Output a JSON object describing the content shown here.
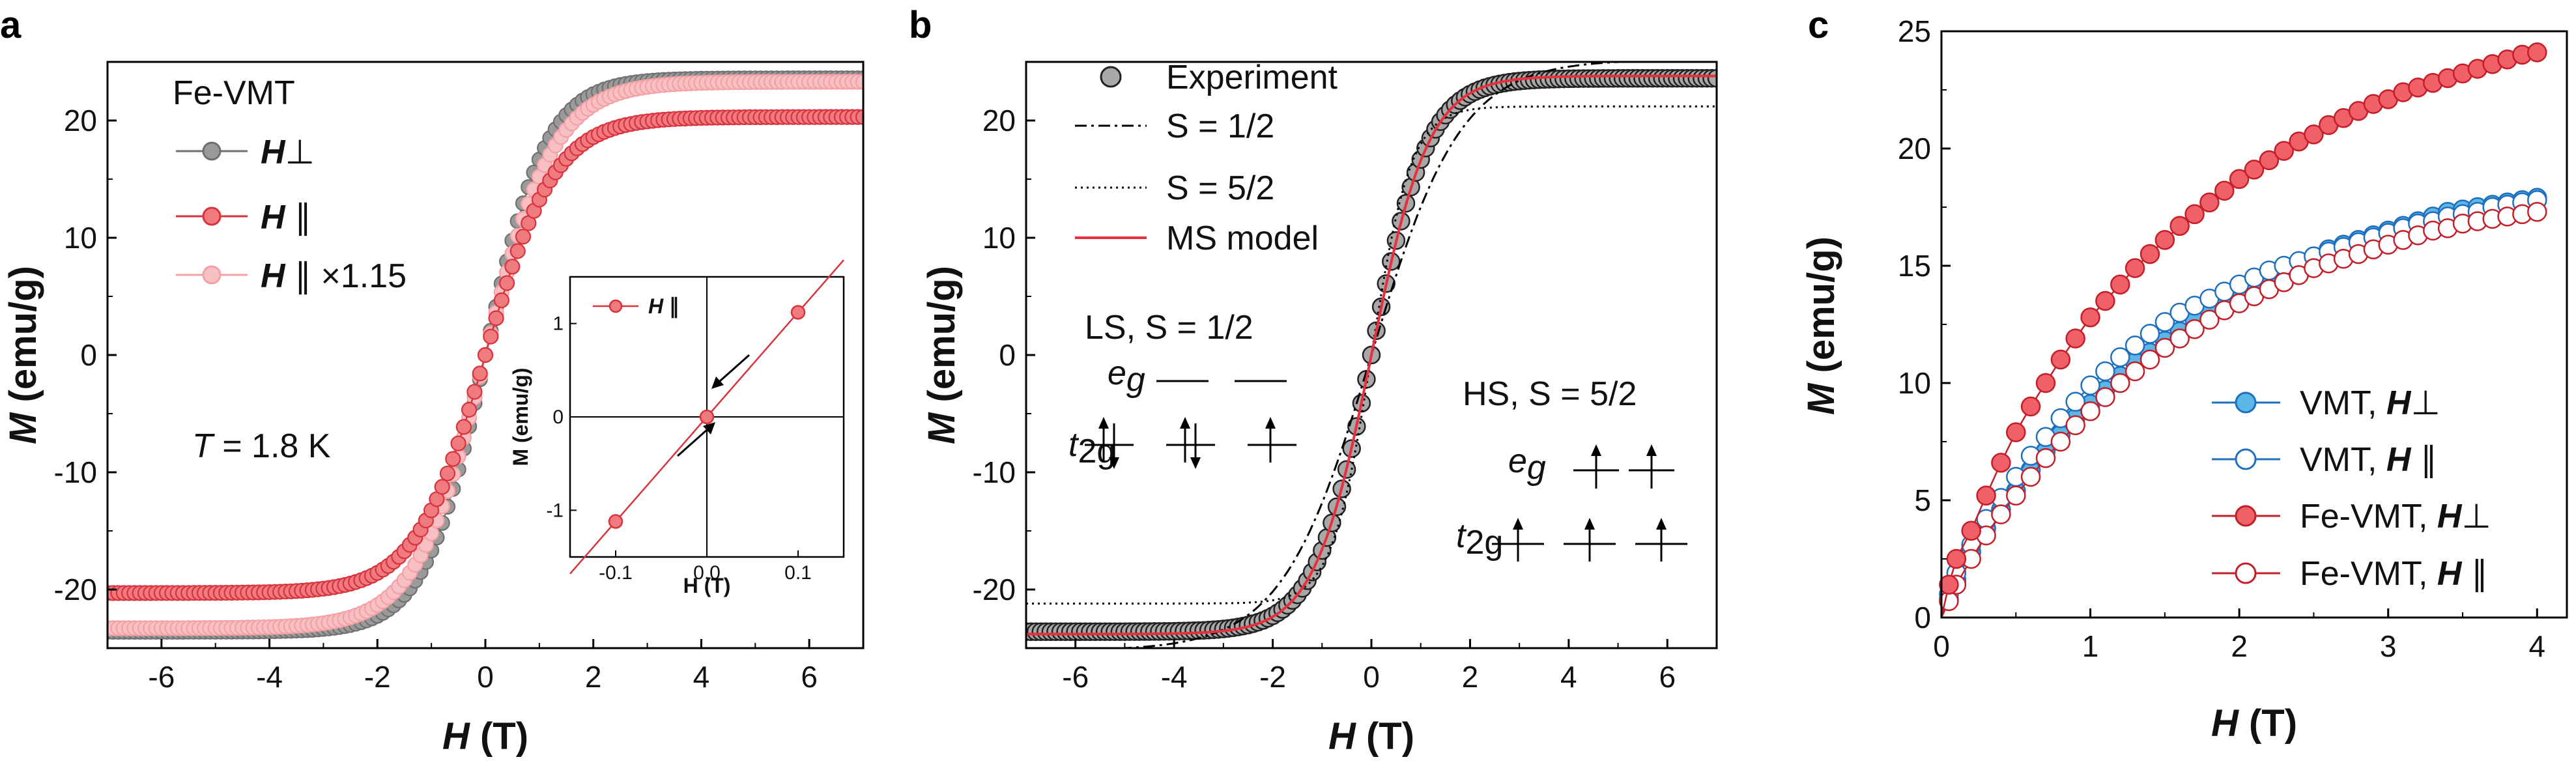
{
  "panels": {
    "a": {
      "letter": "a",
      "legend_title": "Fe-VMT",
      "legend": [
        {
          "sym": "H",
          "suffix": "⊥"
        },
        {
          "sym": "H",
          "suffix": " ∥"
        },
        {
          "sym": "H",
          "suffix": " ∥ ×1.15"
        }
      ],
      "temperature_var": "T",
      "temperature_text": " = 1.8 K",
      "xlabel_var": "H",
      "xlabel_unit": " (T)",
      "ylabel_var": "M",
      "ylabel_unit": " (emu/g)",
      "inset": {
        "legend": {
          "sym": "H",
          "suffix": " ∥"
        },
        "xlabel": "H (T)",
        "ylabel": "M (emu/g)"
      }
    },
    "b": {
      "letter": "b",
      "legend": [
        "Experiment",
        "S = 1/2",
        "S = 5/2",
        "MS model"
      ],
      "ls_label": "LS, S = 1/2",
      "hs_label": "HS, S = 5/2",
      "eg_main": "e",
      "eg_sub": "g",
      "t2g_main": "t",
      "t2g_sub": "2g",
      "xlabel_var": "H",
      "xlabel_unit": " (T)",
      "ylabel_var": "M",
      "ylabel_unit": " (emu/g)"
    },
    "c": {
      "letter": "c",
      "legend": [
        {
          "name": "VMT, ",
          "sym": "H",
          "suffix": "⊥"
        },
        {
          "name": "VMT, ",
          "sym": "H",
          "suffix": " ∥"
        },
        {
          "name": "Fe-VMT, ",
          "sym": "H",
          "suffix": "⊥"
        },
        {
          "name": "Fe-VMT, ",
          "sym": "H",
          "suffix": " ∥"
        }
      ],
      "xlabel_var": "H",
      "xlabel_unit": " (T)",
      "ylabel_var": "M",
      "ylabel_unit": " (emu/g)"
    }
  },
  "chart_data": [
    {
      "panel": "a",
      "type": "line",
      "title": "",
      "xlabel": "H (T)",
      "ylabel": "M (emu/g)",
      "xlim": [
        -7,
        7
      ],
      "ylim": [
        -25,
        25
      ],
      "xticks": [
        -6,
        -4,
        -2,
        0,
        2,
        4,
        6
      ],
      "yticks": [
        -20,
        -10,
        0,
        10,
        20
      ],
      "series": [
        {
          "name": "H⊥",
          "color": "#707070",
          "fill": "#9a9a9a",
          "sat": 23.6,
          "k": 0.88
        },
        {
          "name": "H ∥",
          "color": "#d8323c",
          "fill": "#ef7b7f",
          "sat": 20.3,
          "k": 0.78
        },
        {
          "name": "H ∥ ×1.15",
          "color": "#f4a0a4",
          "fill": "#f7c1c3",
          "sat": 23.3,
          "k": 0.78
        }
      ],
      "inset": {
        "xlim": [
          -0.15,
          0.15
        ],
        "ylim": [
          -1.5,
          1.5
        ],
        "xticks": [
          -0.1,
          0.0,
          0.1
        ],
        "yticks": [
          -1,
          0,
          1
        ],
        "points": [
          [
            -0.1,
            -1.12
          ],
          [
            0.0,
            0.0
          ],
          [
            0.1,
            1.12
          ]
        ]
      }
    },
    {
      "panel": "b",
      "type": "line",
      "title": "",
      "xlabel": "H (T)",
      "ylabel": "M (emu/g)",
      "xlim": [
        -7,
        7
      ],
      "ylim": [
        -25,
        25
      ],
      "xticks": [
        -6,
        -4,
        -2,
        0,
        2,
        4,
        6
      ],
      "yticks": [
        -20,
        -10,
        0,
        10,
        20
      ],
      "series": [
        {
          "name": "Experiment",
          "style": "markers",
          "sat": 23.6,
          "k": 0.88
        },
        {
          "name": "S = 1/2",
          "style": "dashdot",
          "sat": 25.2,
          "k": 0.55
        },
        {
          "name": "S = 5/2",
          "style": "dotted",
          "sat": 21.2,
          "k": 1.25
        },
        {
          "name": "MS model",
          "style": "solid",
          "color": "#e8303c",
          "sat": 23.8,
          "k": 0.86
        }
      ]
    },
    {
      "panel": "c",
      "type": "line",
      "title": "",
      "xlabel": "H (T)",
      "ylabel": "M (emu/g)",
      "xlim": [
        0,
        4.2
      ],
      "ylim": [
        0,
        25
      ],
      "xticks": [
        0,
        1,
        2,
        3,
        4
      ],
      "yticks": [
        0,
        5,
        10,
        15,
        20,
        25
      ],
      "series": [
        {
          "name": "VMT, H⊥",
          "color": "#1e6fbf",
          "fill": "#5cb6e6",
          "filled": true,
          "points": [
            [
              0.05,
              0.8
            ],
            [
              0.1,
              1.6
            ],
            [
              0.2,
              2.8
            ],
            [
              0.3,
              3.8
            ],
            [
              0.4,
              4.6
            ],
            [
              0.5,
              5.4
            ],
            [
              0.6,
              6.3
            ],
            [
              0.7,
              7.1
            ],
            [
              0.8,
              7.8
            ],
            [
              0.9,
              8.5
            ],
            [
              1.0,
              9.1
            ],
            [
              1.1,
              9.7
            ],
            [
              1.2,
              10.3
            ],
            [
              1.3,
              10.9
            ],
            [
              1.4,
              11.3
            ],
            [
              1.5,
              11.8
            ],
            [
              1.6,
              12.2
            ],
            [
              1.7,
              12.7
            ],
            [
              1.8,
              13.1
            ],
            [
              1.9,
              13.5
            ],
            [
              2.0,
              13.8
            ],
            [
              2.1,
              14.2
            ],
            [
              2.2,
              14.5
            ],
            [
              2.3,
              14.8
            ],
            [
              2.4,
              15.1
            ],
            [
              2.5,
              15.4
            ],
            [
              2.6,
              15.7
            ],
            [
              2.7,
              15.9
            ],
            [
              2.8,
              16.1
            ],
            [
              2.9,
              16.3
            ],
            [
              3.0,
              16.5
            ],
            [
              3.1,
              16.7
            ],
            [
              3.2,
              16.9
            ],
            [
              3.3,
              17.1
            ],
            [
              3.4,
              17.3
            ],
            [
              3.5,
              17.4
            ],
            [
              3.6,
              17.5
            ],
            [
              3.7,
              17.6
            ],
            [
              3.8,
              17.7
            ],
            [
              3.9,
              17.8
            ],
            [
              4.0,
              17.9
            ]
          ]
        },
        {
          "name": "VMT, H ∥",
          "color": "#1e6fbf",
          "fill": "#ffffff",
          "filled": false,
          "points": [
            [
              0.05,
              1.0
            ],
            [
              0.1,
              1.9
            ],
            [
              0.2,
              3.1
            ],
            [
              0.3,
              4.2
            ],
            [
              0.4,
              5.1
            ],
            [
              0.5,
              6.0
            ],
            [
              0.6,
              6.9
            ],
            [
              0.7,
              7.7
            ],
            [
              0.8,
              8.5
            ],
            [
              0.9,
              9.2
            ],
            [
              1.0,
              9.9
            ],
            [
              1.1,
              10.5
            ],
            [
              1.2,
              11.1
            ],
            [
              1.3,
              11.6
            ],
            [
              1.4,
              12.1
            ],
            [
              1.5,
              12.6
            ],
            [
              1.6,
              13.0
            ],
            [
              1.7,
              13.3
            ],
            [
              1.8,
              13.6
            ],
            [
              1.9,
              13.9
            ],
            [
              2.0,
              14.2
            ],
            [
              2.1,
              14.5
            ],
            [
              2.2,
              14.8
            ],
            [
              2.3,
              15.0
            ],
            [
              2.4,
              15.2
            ],
            [
              2.5,
              15.4
            ],
            [
              2.6,
              15.6
            ],
            [
              2.7,
              15.8
            ],
            [
              2.8,
              16.0
            ],
            [
              2.9,
              16.2
            ],
            [
              3.0,
              16.4
            ],
            [
              3.1,
              16.6
            ],
            [
              3.2,
              16.8
            ],
            [
              3.3,
              16.9
            ],
            [
              3.4,
              17.1
            ],
            [
              3.5,
              17.2
            ],
            [
              3.6,
              17.3
            ],
            [
              3.7,
              17.5
            ],
            [
              3.8,
              17.6
            ],
            [
              3.9,
              17.7
            ],
            [
              4.0,
              17.8
            ]
          ]
        },
        {
          "name": "Fe-VMT, H⊥",
          "color": "#c41e28",
          "fill": "#ef6068",
          "filled": true,
          "points": [
            [
              0.05,
              1.4
            ],
            [
              0.1,
              2.5
            ],
            [
              0.2,
              3.7
            ],
            [
              0.3,
              5.2
            ],
            [
              0.4,
              6.6
            ],
            [
              0.5,
              7.9
            ],
            [
              0.6,
              9.0
            ],
            [
              0.7,
              10.0
            ],
            [
              0.8,
              11.0
            ],
            [
              0.9,
              11.9
            ],
            [
              1.0,
              12.8
            ],
            [
              1.1,
              13.5
            ],
            [
              1.2,
              14.2
            ],
            [
              1.3,
              14.9
            ],
            [
              1.4,
              15.5
            ],
            [
              1.5,
              16.1
            ],
            [
              1.6,
              16.7
            ],
            [
              1.7,
              17.2
            ],
            [
              1.8,
              17.7
            ],
            [
              1.9,
              18.2
            ],
            [
              2.0,
              18.7
            ],
            [
              2.1,
              19.1
            ],
            [
              2.2,
              19.5
            ],
            [
              2.3,
              19.9
            ],
            [
              2.4,
              20.3
            ],
            [
              2.5,
              20.6
            ],
            [
              2.6,
              21.0
            ],
            [
              2.7,
              21.3
            ],
            [
              2.8,
              21.6
            ],
            [
              2.9,
              21.9
            ],
            [
              3.0,
              22.1
            ],
            [
              3.1,
              22.4
            ],
            [
              3.2,
              22.6
            ],
            [
              3.3,
              22.8
            ],
            [
              3.4,
              23.0
            ],
            [
              3.5,
              23.2
            ],
            [
              3.6,
              23.4
            ],
            [
              3.7,
              23.6
            ],
            [
              3.8,
              23.8
            ],
            [
              3.9,
              24.0
            ],
            [
              4.0,
              24.1
            ]
          ]
        },
        {
          "name": "Fe-VMT, H ∥",
          "color": "#c41e28",
          "fill": "#ffffff",
          "filled": false,
          "points": [
            [
              0.05,
              0.7
            ],
            [
              0.1,
              1.4
            ],
            [
              0.2,
              2.5
            ],
            [
              0.3,
              3.5
            ],
            [
              0.4,
              4.4
            ],
            [
              0.5,
              5.2
            ],
            [
              0.6,
              6.0
            ],
            [
              0.7,
              6.8
            ],
            [
              0.8,
              7.5
            ],
            [
              0.9,
              8.2
            ],
            [
              1.0,
              8.8
            ],
            [
              1.1,
              9.4
            ],
            [
              1.2,
              10.0
            ],
            [
              1.3,
              10.5
            ],
            [
              1.4,
              11.0
            ],
            [
              1.5,
              11.5
            ],
            [
              1.6,
              11.9
            ],
            [
              1.7,
              12.3
            ],
            [
              1.8,
              12.7
            ],
            [
              1.9,
              13.1
            ],
            [
              2.0,
              13.4
            ],
            [
              2.1,
              13.7
            ],
            [
              2.2,
              14.0
            ],
            [
              2.3,
              14.3
            ],
            [
              2.4,
              14.6
            ],
            [
              2.5,
              14.9
            ],
            [
              2.6,
              15.1
            ],
            [
              2.7,
              15.3
            ],
            [
              2.8,
              15.5
            ],
            [
              2.9,
              15.7
            ],
            [
              3.0,
              15.9
            ],
            [
              3.1,
              16.1
            ],
            [
              3.2,
              16.3
            ],
            [
              3.3,
              16.5
            ],
            [
              3.4,
              16.6
            ],
            [
              3.5,
              16.8
            ],
            [
              3.6,
              16.9
            ],
            [
              3.7,
              17.0
            ],
            [
              3.8,
              17.1
            ],
            [
              3.9,
              17.2
            ],
            [
              4.0,
              17.3
            ]
          ]
        }
      ]
    }
  ]
}
